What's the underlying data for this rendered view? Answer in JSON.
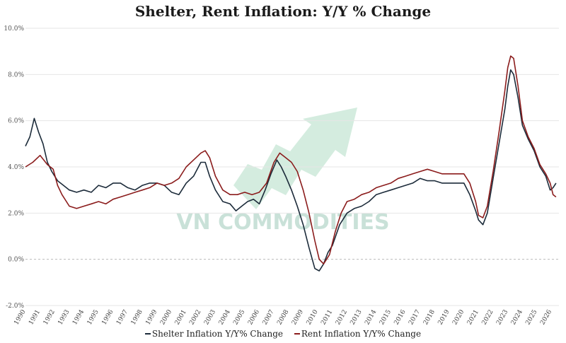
{
  "chart_data": {
    "type": "line",
    "title": "Shelter, Rent Inflation: Y/Y % Change",
    "xlabel": "",
    "ylabel": "",
    "xlim": [
      1990,
      2026.5
    ],
    "ylim": [
      -2,
      10
    ],
    "yticks": [
      -2,
      0,
      2,
      4,
      6,
      8,
      10
    ],
    "ytick_labels": [
      "-2.0%",
      "0.0%",
      "2.0%",
      "4.0%",
      "6.0%",
      "8.0%",
      "10.0%"
    ],
    "xticks": [
      1990,
      1991,
      1992,
      1993,
      1994,
      1995,
      1996,
      1997,
      1998,
      1999,
      2000,
      2001,
      2002,
      2003,
      2004,
      2005,
      2006,
      2007,
      2008,
      2009,
      2010,
      2011,
      2012,
      2013,
      2014,
      2015,
      2016,
      2017,
      2018,
      2019,
      2020,
      2021,
      2022,
      2023,
      2024,
      2025,
      2026
    ],
    "xtick_labels": [
      "1990",
      "1991",
      "1992",
      "1993",
      "1994",
      "1995",
      "1996",
      "1997",
      "1998",
      "1999",
      "2000",
      "2001",
      "2002",
      "2003",
      "2004",
      "2005",
      "2006",
      "2007",
      "2008",
      "2009",
      "2010",
      "2011",
      "2012",
      "2013",
      "2014",
      "2015",
      "2016",
      "2017",
      "2018",
      "2019",
      "2020",
      "2021",
      "2022",
      "2023",
      "2024",
      "2025",
      "2026"
    ],
    "grid": true,
    "legend_position": "bottom",
    "series": [
      {
        "name": "Shelter Inflation Y/Y% Change",
        "color": "#1c2b3a",
        "x": [
          1990.0,
          1990.3,
          1990.6,
          1990.9,
          1991.2,
          1991.5,
          1991.8,
          1992.2,
          1992.6,
          1993.0,
          1993.5,
          1994.0,
          1994.5,
          1995.0,
          1995.5,
          1996.0,
          1996.5,
          1997.0,
          1997.5,
          1998.0,
          1998.5,
          1999.0,
          1999.5,
          2000.0,
          2000.5,
          2001.0,
          2001.5,
          2002.0,
          2002.3,
          2002.6,
          2003.0,
          2003.5,
          2004.0,
          2004.4,
          2004.8,
          2005.2,
          2005.6,
          2006.0,
          2006.4,
          2006.8,
          2007.2,
          2007.5,
          2007.8,
          2008.2,
          2008.6,
          2009.0,
          2009.4,
          2009.8,
          2010.1,
          2010.4,
          2010.7,
          2011.0,
          2011.5,
          2012.0,
          2012.5,
          2013.0,
          2013.5,
          2014.0,
          2014.5,
          2015.0,
          2015.5,
          2016.0,
          2016.5,
          2017.0,
          2017.5,
          2018.0,
          2018.5,
          2019.0,
          2019.5,
          2020.0,
          2020.4,
          2020.8,
          2021.0,
          2021.3,
          2021.6,
          2022.0,
          2022.4,
          2022.8,
          2023.0,
          2023.2,
          2023.4,
          2023.7,
          2024.0,
          2024.4,
          2024.8,
          2025.2,
          2025.6,
          2025.9,
          2026.1,
          2026.3
        ],
        "values": [
          4.9,
          5.3,
          6.1,
          5.5,
          5.0,
          4.2,
          3.8,
          3.4,
          3.2,
          3.0,
          2.9,
          3.0,
          2.9,
          3.2,
          3.1,
          3.3,
          3.3,
          3.1,
          3.0,
          3.2,
          3.3,
          3.3,
          3.2,
          2.9,
          2.8,
          3.3,
          3.6,
          4.2,
          4.2,
          3.6,
          3.0,
          2.5,
          2.4,
          2.1,
          2.3,
          2.5,
          2.6,
          2.4,
          3.0,
          3.7,
          4.3,
          4.0,
          3.6,
          3.0,
          2.3,
          1.5,
          0.5,
          -0.4,
          -0.5,
          -0.2,
          0.3,
          0.6,
          1.5,
          2.0,
          2.2,
          2.3,
          2.5,
          2.8,
          2.9,
          3.0,
          3.1,
          3.2,
          3.3,
          3.5,
          3.4,
          3.4,
          3.3,
          3.3,
          3.3,
          3.3,
          2.8,
          2.1,
          1.7,
          1.5,
          2.0,
          3.5,
          5.0,
          6.5,
          7.5,
          8.2,
          8.0,
          7.0,
          5.8,
          5.2,
          4.7,
          4.0,
          3.6,
          3.0,
          3.1,
          3.3
        ]
      },
      {
        "name": "Rent Inflation Y/Y% Change",
        "color": "#8b1c1c",
        "x": [
          1990.0,
          1990.5,
          1991.0,
          1991.5,
          1991.9,
          1992.2,
          1992.5,
          1993.0,
          1993.5,
          1994.0,
          1994.5,
          1995.0,
          1995.5,
          1996.0,
          1996.5,
          1997.0,
          1997.5,
          1998.0,
          1998.5,
          1999.0,
          1999.5,
          2000.0,
          2000.5,
          2001.0,
          2001.5,
          2002.0,
          2002.3,
          2002.6,
          2003.0,
          2003.5,
          2004.0,
          2004.5,
          2005.0,
          2005.5,
          2006.0,
          2006.5,
          2007.0,
          2007.4,
          2007.8,
          2008.2,
          2008.6,
          2009.0,
          2009.4,
          2009.8,
          2010.1,
          2010.4,
          2010.8,
          2011.2,
          2011.6,
          2012.0,
          2012.5,
          2013.0,
          2013.5,
          2014.0,
          2014.5,
          2015.0,
          2015.5,
          2016.0,
          2016.5,
          2017.0,
          2017.5,
          2018.0,
          2018.5,
          2019.0,
          2019.5,
          2020.0,
          2020.4,
          2020.8,
          2021.0,
          2021.3,
          2021.6,
          2022.0,
          2022.4,
          2022.8,
          2023.0,
          2023.2,
          2023.4,
          2023.7,
          2024.0,
          2024.4,
          2024.8,
          2025.2,
          2025.6,
          2025.9,
          2026.1,
          2026.3
        ],
        "values": [
          4.0,
          4.2,
          4.5,
          4.1,
          3.9,
          3.2,
          2.8,
          2.3,
          2.2,
          2.3,
          2.4,
          2.5,
          2.4,
          2.6,
          2.7,
          2.8,
          2.9,
          3.0,
          3.1,
          3.3,
          3.2,
          3.3,
          3.5,
          4.0,
          4.3,
          4.6,
          4.7,
          4.4,
          3.6,
          3.0,
          2.8,
          2.8,
          2.9,
          2.8,
          2.9,
          3.3,
          4.2,
          4.6,
          4.4,
          4.2,
          3.8,
          3.0,
          2.0,
          0.8,
          0.0,
          -0.2,
          0.2,
          1.2,
          2.0,
          2.5,
          2.6,
          2.8,
          2.9,
          3.1,
          3.2,
          3.3,
          3.5,
          3.6,
          3.7,
          3.8,
          3.9,
          3.8,
          3.7,
          3.7,
          3.7,
          3.7,
          3.3,
          2.5,
          1.9,
          1.8,
          2.3,
          3.8,
          5.5,
          7.3,
          8.3,
          8.8,
          8.7,
          7.5,
          6.0,
          5.3,
          4.8,
          4.1,
          3.7,
          3.3,
          2.8,
          2.7
        ]
      }
    ]
  },
  "legend_items": [
    {
      "label": "Shelter Inflation Y/Y% Change",
      "color": "#1c2b3a"
    },
    {
      "label": "Rent Inflation Y/Y% Change",
      "color": "#8b1c1c"
    }
  ],
  "watermark": {
    "text": "VN COMMODITIES",
    "color": "#b8d8cc",
    "arrow_color": "#9fd4b8"
  }
}
